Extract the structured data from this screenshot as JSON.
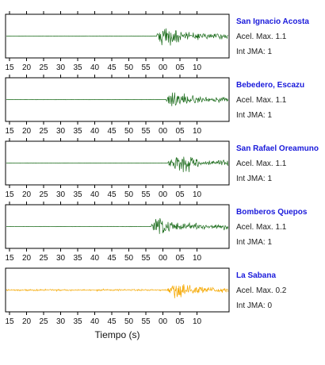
{
  "chart_data": {
    "type": "line",
    "xlabel": "Tiempo (s)",
    "tick_labels": [
      "15",
      "20",
      "25",
      "30",
      "35",
      "40",
      "45",
      "50",
      "55",
      "00",
      "05",
      "10"
    ],
    "panels": [
      {
        "name": "San Ignacio Acosta",
        "acel_label": "Acel. Max. 1.1",
        "jma_label": "Int JMA: 1",
        "color": "#1a6b1a",
        "onset_tick": 8.6,
        "peak_tick": 9.2,
        "amplitude": 1.0,
        "show_ticks": true
      },
      {
        "name": "Bebedero, Escazu",
        "acel_label": "Acel. Max. 1.1",
        "jma_label": "Int JMA: 1",
        "color": "#1a6b1a",
        "onset_tick": 9.2,
        "peak_tick": 9.6,
        "amplitude": 0.95,
        "show_ticks": true
      },
      {
        "name": "San Rafael Oreamuno",
        "acel_label": "Acel. Max. 1.1",
        "jma_label": "Int JMA: 1",
        "color": "#1a6b1a",
        "onset_tick": 9.3,
        "peak_tick": 10.0,
        "amplitude": 1.0,
        "show_ticks": true
      },
      {
        "name": "Bomberos Quepos",
        "acel_label": "Acel. Max. 1.1",
        "jma_label": "Int JMA: 1",
        "color": "#1a6b1a",
        "onset_tick": 8.3,
        "peak_tick": 8.7,
        "amplitude": 1.0,
        "show_ticks": true
      },
      {
        "name": "La Sabana",
        "acel_label": "Acel. Max. 0.2",
        "jma_label": "Int JMA: 0",
        "color": "#f5a800",
        "onset_tick": 9.2,
        "peak_tick": 10.0,
        "amplitude": 0.95,
        "show_ticks": false
      }
    ]
  }
}
